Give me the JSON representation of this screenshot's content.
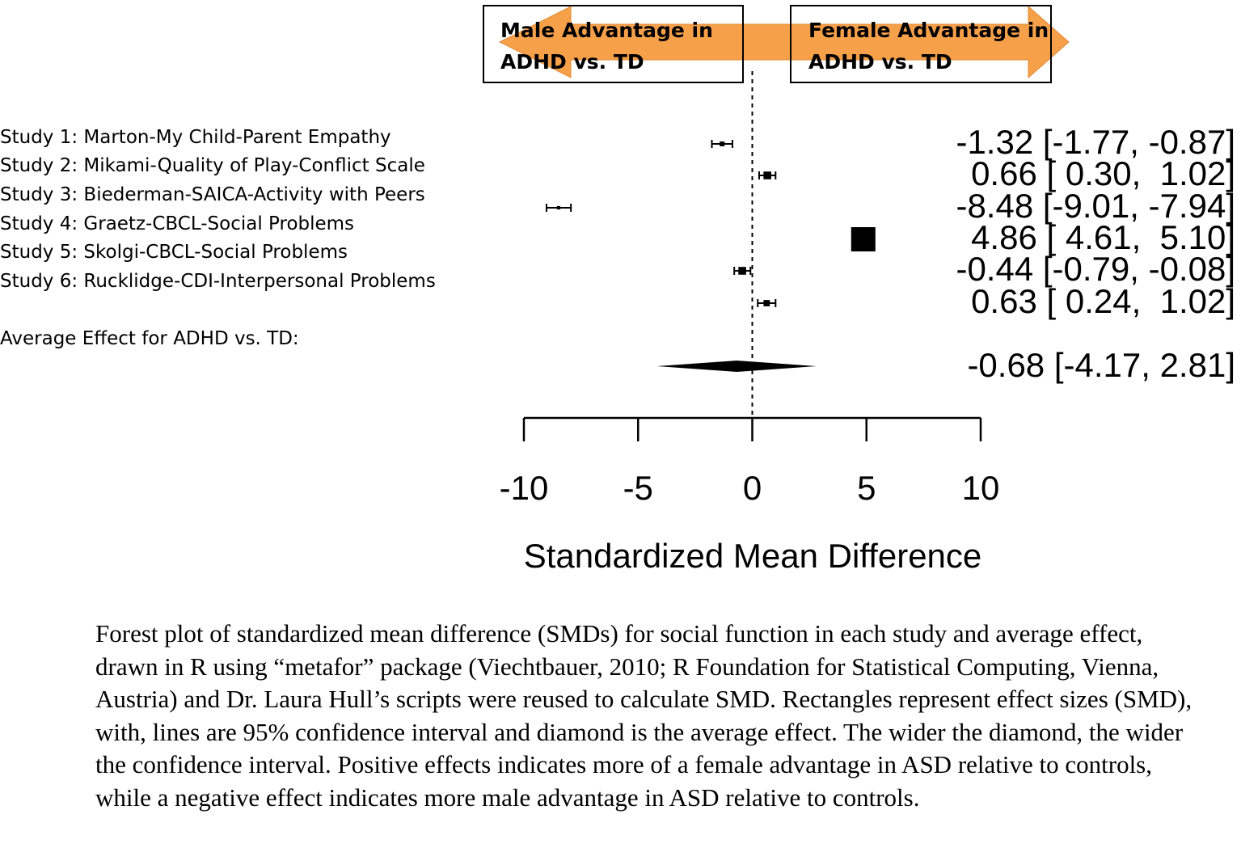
{
  "colors": {
    "arrow_fill": "#f7a04a",
    "arrow_fill_light": "#fbc58e",
    "ink": "#000000"
  },
  "banner": {
    "left_line1": "Male Advantage in",
    "left_line2": "ADHD vs. TD",
    "right_line1": "Female Advantage in",
    "right_line2": "ADHD vs. TD"
  },
  "chart_data": {
    "type": "forest",
    "xlabel": "Standardized Mean Difference",
    "xlim": [
      -10,
      10
    ],
    "ticks": [
      -10,
      -5,
      0,
      5,
      10
    ],
    "reference_line": 0,
    "studies": [
      {
        "label": "Study 1: Marton-My Child-Parent Empathy",
        "estimate": -1.32,
        "ci_low": -1.77,
        "ci_high": -0.87,
        "ci_text": "-1.32 [-1.77, -0.87]",
        "weight": 1.0
      },
      {
        "label": "Study 2: Mikami-Quality of Play-Conflict Scale",
        "estimate": 0.66,
        "ci_low": 0.3,
        "ci_high": 1.02,
        "ci_text": "0.66 [ 0.30,  1.02]",
        "weight": 1.6
      },
      {
        "label": "Study 3: Biederman-SAICA-Activity with Peers",
        "estimate": -8.48,
        "ci_low": -9.01,
        "ci_high": -7.94,
        "ci_text": "-8.48 [-9.01, -7.94]",
        "weight": 0.7
      },
      {
        "label": "Study 4: Graetz-CBCL-Social Problems",
        "estimate": 4.86,
        "ci_low": 4.61,
        "ci_high": 5.1,
        "ci_text": "4.86 [ 4.61,  5.10]",
        "weight": 5.0
      },
      {
        "label": "Study 5: Skolgi-CBCL-Social Problems",
        "estimate": -0.44,
        "ci_low": -0.79,
        "ci_high": -0.08,
        "ci_text": "-0.44 [-0.79, -0.08]",
        "weight": 1.6
      },
      {
        "label": "Study 6: Rucklidge-CDI-Interpersonal Problems",
        "estimate": 0.63,
        "ci_low": 0.24,
        "ci_high": 1.02,
        "ci_text": "0.63 [ 0.24,  1.02]",
        "weight": 1.3
      }
    ],
    "summary": {
      "label": "Average Effect for ADHD vs. TD:",
      "estimate": -0.68,
      "ci_low": -4.17,
      "ci_high": 2.81,
      "ci_text": "-0.68 [-4.17, 2.81]"
    }
  },
  "caption": "Forest plot of standardized mean difference (SMDs) for social function in each study and average effect, drawn in R using “metafor” package (Viechtbauer, 2010; R Foundation for Statistical Computing, Vienna, Austria) and Dr. Laura Hull’s scripts were reused to calculate SMD. Rectangles represent effect sizes (SMD), with, lines are 95% confidence interval and diamond is the average effect. The wider the diamond, the wider the confidence interval. Positive effects indicates more of a female advantage in ASD relative to controls, while a negative effect indicates more male advantage in ASD relative to controls."
}
